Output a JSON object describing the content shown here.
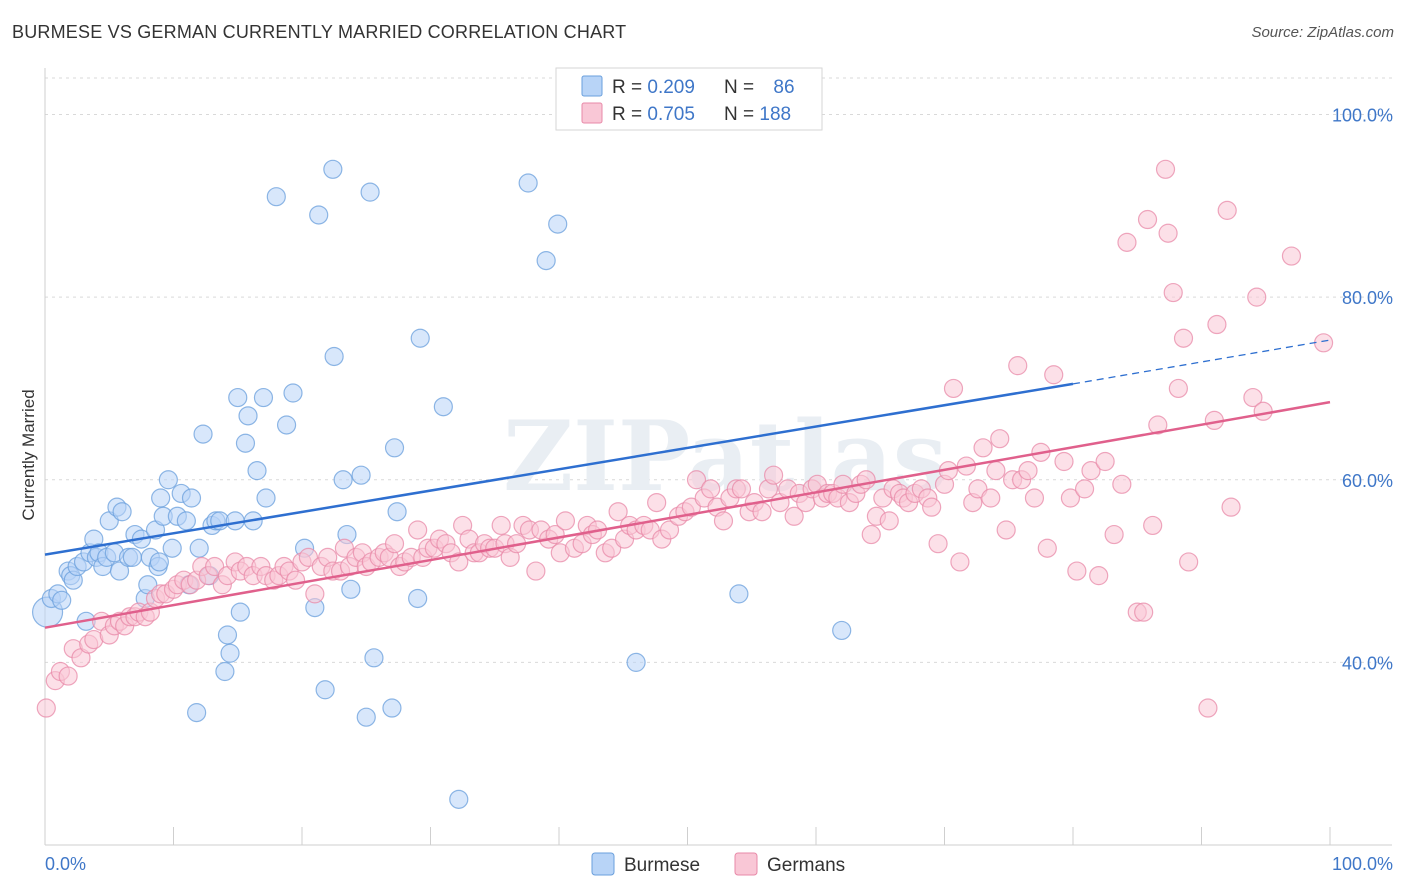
{
  "title": "BURMESE VS GERMAN CURRENTLY MARRIED CORRELATION CHART",
  "source": "Source: ZipAtlas.com",
  "watermark": "ZIPatlas",
  "colors": {
    "burmese_fill": "#b8d4f7",
    "burmese_stroke": "#6a9fdc",
    "burmese_line": "#2e6fd0",
    "germans_fill": "#f9c7d6",
    "germans_stroke": "#e889a8",
    "germans_line": "#e0608c",
    "tick_label": "#3f77c8"
  },
  "legend": {
    "rows": [
      {
        "r_label": "R = ",
        "r_value": "0.209",
        "n_label": "N = ",
        "n_value": "86"
      },
      {
        "r_label": "R = ",
        "r_value": "0.705",
        "n_label": "N = ",
        "n_value": "188"
      }
    ]
  },
  "chart_data": {
    "type": "scatter",
    "title": "BURMESE VS GERMAN CURRENTLY MARRIED CORRELATION CHART",
    "xlabel": "",
    "ylabel": "Currently Married",
    "xlim": [
      0,
      100
    ],
    "ylim": [
      20,
      104
    ],
    "x_tick_labels": [
      "0.0%",
      "100.0%"
    ],
    "y_ticks": [
      40,
      60,
      80,
      100
    ],
    "y_tick_labels": [
      "40.0%",
      "60.0%",
      "80.0%",
      "100.0%"
    ],
    "grid": true,
    "legend_position": "top-center",
    "series": [
      {
        "name": "Burmese",
        "r": 0.209,
        "n": 86,
        "trend": {
          "x0": 0,
          "y0": 51.8,
          "x1": 80,
          "y1": 70.5,
          "dash_to_x": 100,
          "dash_to_y": 75.3
        },
        "points": [
          [
            0.2,
            45.5
          ],
          [
            0.5,
            47
          ],
          [
            1,
            47.5
          ],
          [
            1.3,
            46.8
          ],
          [
            1.8,
            50
          ],
          [
            2,
            49.5
          ],
          [
            2.2,
            49
          ],
          [
            2.5,
            50.5
          ],
          [
            3,
            51
          ],
          [
            3.2,
            44.5
          ],
          [
            3.5,
            52
          ],
          [
            3.8,
            53.5
          ],
          [
            4,
            51.5
          ],
          [
            4.2,
            52
          ],
          [
            4.5,
            50.5
          ],
          [
            4.8,
            51.5
          ],
          [
            5,
            55.5
          ],
          [
            5.4,
            52
          ],
          [
            5.6,
            57
          ],
          [
            5.8,
            50
          ],
          [
            6,
            56.5
          ],
          [
            6.5,
            51.5
          ],
          [
            6.8,
            51.5
          ],
          [
            7,
            54
          ],
          [
            7.5,
            53.5
          ],
          [
            7.8,
            47
          ],
          [
            8,
            48.5
          ],
          [
            8.2,
            51.5
          ],
          [
            8.6,
            54.5
          ],
          [
            8.8,
            50.5
          ],
          [
            8.9,
            51
          ],
          [
            9,
            58
          ],
          [
            9.2,
            56
          ],
          [
            9.6,
            60
          ],
          [
            9.9,
            52.5
          ],
          [
            10.3,
            56
          ],
          [
            10.6,
            58.5
          ],
          [
            11,
            55.5
          ],
          [
            11.2,
            48.5
          ],
          [
            11.4,
            58
          ],
          [
            11.8,
            34.5
          ],
          [
            12,
            52.5
          ],
          [
            12.3,
            65
          ],
          [
            12.8,
            49.5
          ],
          [
            13,
            55
          ],
          [
            13.3,
            55.5
          ],
          [
            13.6,
            55.5
          ],
          [
            14,
            39
          ],
          [
            14.2,
            43
          ],
          [
            14.4,
            41
          ],
          [
            14.8,
            55.5
          ],
          [
            15,
            69
          ],
          [
            15.2,
            45.5
          ],
          [
            15.6,
            64
          ],
          [
            15.8,
            67
          ],
          [
            16.2,
            55.5
          ],
          [
            16.5,
            61
          ],
          [
            17,
            69
          ],
          [
            17.2,
            58
          ],
          [
            18,
            91
          ],
          [
            18.8,
            66
          ],
          [
            19.3,
            69.5
          ],
          [
            20.2,
            52.5
          ],
          [
            21,
            46
          ],
          [
            21.3,
            89
          ],
          [
            21.8,
            37
          ],
          [
            22.4,
            94
          ],
          [
            22.5,
            73.5
          ],
          [
            23.2,
            60
          ],
          [
            23.5,
            54
          ],
          [
            23.8,
            48
          ],
          [
            24.6,
            60.5
          ],
          [
            25,
            34
          ],
          [
            25.3,
            91.5
          ],
          [
            25.6,
            40.5
          ],
          [
            27,
            35
          ],
          [
            27.2,
            63.5
          ],
          [
            27.4,
            56.5
          ],
          [
            29,
            47
          ],
          [
            29.2,
            75.5
          ],
          [
            31,
            68
          ],
          [
            32.2,
            25
          ],
          [
            37.6,
            92.5
          ],
          [
            39,
            84
          ],
          [
            39.9,
            88
          ],
          [
            46,
            40
          ],
          [
            54,
            47.5
          ],
          [
            62,
            43.5
          ]
        ]
      },
      {
        "name": "Germans",
        "r": 0.705,
        "n": 188,
        "trend": {
          "x0": 0,
          "y0": 43.8,
          "x1": 100,
          "y1": 68.5
        },
        "points": [
          [
            0.1,
            35
          ],
          [
            0.8,
            38
          ],
          [
            1.2,
            39
          ],
          [
            1.8,
            38.5
          ],
          [
            2.2,
            41.5
          ],
          [
            2.8,
            40.5
          ],
          [
            3.4,
            42
          ],
          [
            3.8,
            42.5
          ],
          [
            4.4,
            44.5
          ],
          [
            5,
            43
          ],
          [
            5.4,
            44
          ],
          [
            5.8,
            44.5
          ],
          [
            6.2,
            44
          ],
          [
            6.6,
            45
          ],
          [
            7,
            45
          ],
          [
            7.3,
            45.5
          ],
          [
            7.8,
            45
          ],
          [
            8.2,
            45.5
          ],
          [
            8.6,
            47
          ],
          [
            9,
            47.5
          ],
          [
            9.4,
            47.5
          ],
          [
            10,
            48
          ],
          [
            10.3,
            48.5
          ],
          [
            10.8,
            49
          ],
          [
            11.3,
            48.5
          ],
          [
            11.8,
            49
          ],
          [
            12.2,
            50.5
          ],
          [
            12.7,
            49.5
          ],
          [
            13.2,
            50.5
          ],
          [
            13.8,
            48.5
          ],
          [
            14.2,
            49.5
          ],
          [
            14.8,
            51
          ],
          [
            15.2,
            50
          ],
          [
            15.7,
            50.5
          ],
          [
            16.2,
            49.5
          ],
          [
            16.8,
            50.5
          ],
          [
            17.2,
            49.5
          ],
          [
            17.8,
            49
          ],
          [
            18.2,
            49.5
          ],
          [
            18.6,
            50.5
          ],
          [
            19,
            50
          ],
          [
            19.5,
            49
          ],
          [
            20,
            51
          ],
          [
            20.5,
            51.5
          ],
          [
            21,
            47.5
          ],
          [
            21.5,
            50.5
          ],
          [
            22,
            51.5
          ],
          [
            22.4,
            50
          ],
          [
            23,
            50
          ],
          [
            23.3,
            52.5
          ],
          [
            23.7,
            50.5
          ],
          [
            24.2,
            51.5
          ],
          [
            24.7,
            52
          ],
          [
            25,
            50.5
          ],
          [
            25.4,
            51
          ],
          [
            26,
            51.5
          ],
          [
            26.4,
            52
          ],
          [
            26.8,
            51.5
          ],
          [
            27.2,
            53
          ],
          [
            27.6,
            50.5
          ],
          [
            28,
            51
          ],
          [
            28.5,
            51.5
          ],
          [
            29,
            54.5
          ],
          [
            29.4,
            51.5
          ],
          [
            29.8,
            52.5
          ],
          [
            30.3,
            52.5
          ],
          [
            30.7,
            53.5
          ],
          [
            31.2,
            53
          ],
          [
            31.6,
            52
          ],
          [
            32.2,
            51
          ],
          [
            32.5,
            55
          ],
          [
            33,
            53.5
          ],
          [
            33.4,
            52
          ],
          [
            33.8,
            52
          ],
          [
            34.2,
            53
          ],
          [
            34.6,
            52.5
          ],
          [
            35,
            52.5
          ],
          [
            35.5,
            55
          ],
          [
            35.8,
            53
          ],
          [
            36.2,
            51.5
          ],
          [
            36.7,
            53
          ],
          [
            37.2,
            55
          ],
          [
            37.7,
            54.5
          ],
          [
            38.2,
            50
          ],
          [
            38.6,
            54.5
          ],
          [
            39.2,
            53.5
          ],
          [
            39.7,
            54
          ],
          [
            40.1,
            52
          ],
          [
            40.5,
            55.5
          ],
          [
            41.2,
            52.5
          ],
          [
            41.8,
            53
          ],
          [
            42.2,
            55
          ],
          [
            42.6,
            54
          ],
          [
            43,
            54.5
          ],
          [
            43.6,
            52
          ],
          [
            44.1,
            52.5
          ],
          [
            44.6,
            56.5
          ],
          [
            45.1,
            53.5
          ],
          [
            45.5,
            55
          ],
          [
            46,
            54.5
          ],
          [
            46.6,
            55
          ],
          [
            47.1,
            54.5
          ],
          [
            47.6,
            57.5
          ],
          [
            48,
            53.5
          ],
          [
            48.6,
            54.5
          ],
          [
            49.3,
            56
          ],
          [
            49.8,
            56.5
          ],
          [
            50.3,
            57
          ],
          [
            50.7,
            60
          ],
          [
            51.3,
            58
          ],
          [
            51.8,
            59
          ],
          [
            52.3,
            57
          ],
          [
            52.8,
            55.5
          ],
          [
            53.3,
            58
          ],
          [
            53.8,
            59
          ],
          [
            54.2,
            59
          ],
          [
            54.8,
            56.5
          ],
          [
            55.2,
            57.5
          ],
          [
            55.8,
            56.5
          ],
          [
            56.3,
            59
          ],
          [
            56.7,
            60.5
          ],
          [
            57.2,
            57.5
          ],
          [
            57.8,
            59
          ],
          [
            58.3,
            56
          ],
          [
            58.7,
            58.5
          ],
          [
            59.2,
            57.5
          ],
          [
            59.7,
            59
          ],
          [
            60.1,
            59.5
          ],
          [
            60.5,
            58
          ],
          [
            60.9,
            58.5
          ],
          [
            61.3,
            58.5
          ],
          [
            61.7,
            58
          ],
          [
            62.1,
            59.5
          ],
          [
            62.6,
            57.5
          ],
          [
            63.1,
            58.5
          ],
          [
            63.5,
            59.5
          ],
          [
            63.9,
            60
          ],
          [
            64.3,
            54
          ],
          [
            64.7,
            56
          ],
          [
            65.2,
            58
          ],
          [
            65.7,
            55.5
          ],
          [
            66,
            59
          ],
          [
            66.5,
            58.5
          ],
          [
            66.8,
            58
          ],
          [
            67.2,
            57.5
          ],
          [
            67.7,
            58.5
          ],
          [
            68.2,
            59
          ],
          [
            68.7,
            58
          ],
          [
            69,
            57
          ],
          [
            69.5,
            53
          ],
          [
            70,
            59.5
          ],
          [
            70.3,
            61
          ],
          [
            70.7,
            70
          ],
          [
            71.2,
            51
          ],
          [
            71.7,
            61.5
          ],
          [
            72.2,
            57.5
          ],
          [
            72.6,
            59
          ],
          [
            73,
            63.5
          ],
          [
            73.6,
            58
          ],
          [
            74,
            61
          ],
          [
            74.3,
            64.5
          ],
          [
            74.8,
            54.5
          ],
          [
            75.3,
            60
          ],
          [
            75.7,
            72.5
          ],
          [
            76,
            60
          ],
          [
            76.5,
            61
          ],
          [
            77,
            58
          ],
          [
            77.5,
            63
          ],
          [
            78,
            52.5
          ],
          [
            78.5,
            71.5
          ],
          [
            79.3,
            62
          ],
          [
            79.8,
            58
          ],
          [
            80.3,
            50
          ],
          [
            80.9,
            59
          ],
          [
            81.4,
            61
          ],
          [
            82,
            49.5
          ],
          [
            82.5,
            62
          ],
          [
            83.2,
            54
          ],
          [
            83.8,
            59.5
          ],
          [
            84.2,
            86
          ],
          [
            85,
            45.5
          ],
          [
            85.5,
            45.5
          ],
          [
            85.8,
            88.5
          ],
          [
            86.2,
            55
          ],
          [
            86.6,
            66
          ],
          [
            87.2,
            94
          ],
          [
            87.4,
            87
          ],
          [
            87.8,
            80.5
          ],
          [
            88.2,
            70
          ],
          [
            88.6,
            75.5
          ],
          [
            89,
            51
          ],
          [
            90.5,
            35
          ],
          [
            91,
            66.5
          ],
          [
            91.2,
            77
          ],
          [
            92,
            89.5
          ],
          [
            92.3,
            57
          ],
          [
            94,
            69
          ],
          [
            94.3,
            80
          ],
          [
            94.8,
            67.5
          ],
          [
            97,
            84.5
          ],
          [
            99.5,
            75
          ]
        ]
      }
    ]
  }
}
